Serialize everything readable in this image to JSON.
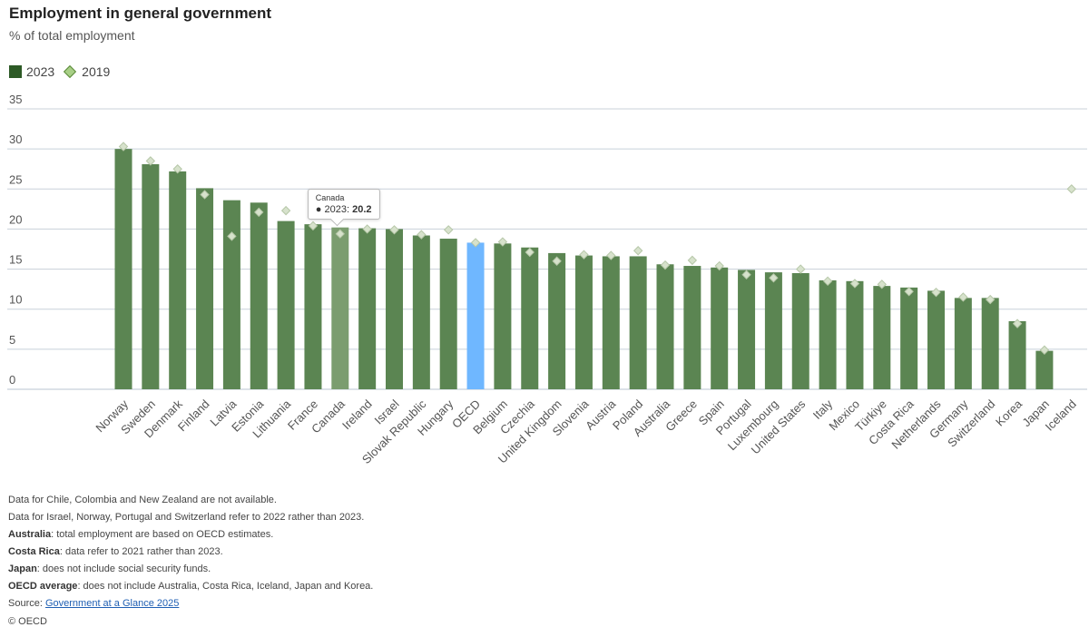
{
  "header": {
    "title": "Employment in general government",
    "subtitle": "% of total employment"
  },
  "legend": {
    "series_2023": "2023",
    "series_2019": "2019"
  },
  "colors": {
    "bar": "#5b8552",
    "bar_highlight": "#7b9d6f",
    "bar_oecd": "#6fb7ff",
    "diamond_fill": "#d7e2cc",
    "diamond_stroke": "#b6c7a8",
    "grid": "#c8d0da",
    "legend_bar": "#2d5a26"
  },
  "tooltip": {
    "country": "Canada",
    "label": "● 2023: ",
    "value": "20.2"
  },
  "chart_data": {
    "type": "bar",
    "title": "Employment in general government",
    "ylabel": "% of total employment",
    "ylim": [
      0,
      35
    ],
    "yticks": [
      0,
      5,
      10,
      15,
      20,
      25,
      30,
      35
    ],
    "categories": [
      "Norway",
      "Sweden",
      "Denmark",
      "Finland",
      "Latvia",
      "Estonia",
      "Lithuania",
      "France",
      "Canada",
      "Ireland",
      "Israel",
      "Slovak Republic",
      "Hungary",
      "OECD",
      "Belgium",
      "Czechia",
      "United Kingdom",
      "Slovenia",
      "Austria",
      "Poland",
      "Australia",
      "Greece",
      "Spain",
      "Portugal",
      "Luxembourg",
      "United States",
      "Italy",
      "Mexico",
      "Türkiye",
      "Costa Rica",
      "Netherlands",
      "Germany",
      "Switzerland",
      "Korea",
      "Japan",
      "Iceland"
    ],
    "series": [
      {
        "name": "2023",
        "values": [
          30.0,
          28.1,
          27.2,
          25.1,
          23.6,
          23.3,
          21.0,
          20.6,
          20.2,
          20.1,
          20.0,
          19.2,
          18.8,
          18.3,
          18.2,
          17.7,
          17.0,
          16.7,
          16.6,
          16.6,
          15.6,
          15.4,
          15.2,
          14.9,
          14.6,
          14.5,
          13.6,
          13.5,
          12.9,
          12.7,
          12.3,
          11.4,
          11.4,
          8.5,
          4.8,
          null
        ]
      },
      {
        "name": "2019",
        "values": [
          30.3,
          28.5,
          27.5,
          24.3,
          19.1,
          22.1,
          22.3,
          20.4,
          19.4,
          20.0,
          19.9,
          19.3,
          19.9,
          18.3,
          18.4,
          17.1,
          16.0,
          16.8,
          16.7,
          17.3,
          15.5,
          16.1,
          15.4,
          14.3,
          13.9,
          15.0,
          13.5,
          13.2,
          13.1,
          12.2,
          12.1,
          11.5,
          11.2,
          8.2,
          4.9,
          25.0
        ]
      }
    ],
    "highlight": "Canada",
    "average_category": "OECD"
  },
  "notes": {
    "line1": "Data for Chile, Colombia and New Zealand are not available.",
    "line2": "Data for Israel, Norway, Portugal and Switzerland refer to 2022 rather than 2023.",
    "line3_bold": "Australia",
    "line3_rest": ": total employment are based on OECD estimates.",
    "line4_bold": "Costa Rica",
    "line4_rest": ": data refer to 2021 rather than 2023.",
    "line5_bold": "Japan",
    "line5_rest": ": does not include social security funds.",
    "line6_bold": "OECD average",
    "line6_rest": ": does not include Australia, Costa Rica, Iceland, Japan and Korea.",
    "source_label": "Source: ",
    "source_link": "Government at a Glance 2025"
  },
  "copyright": "© OECD"
}
